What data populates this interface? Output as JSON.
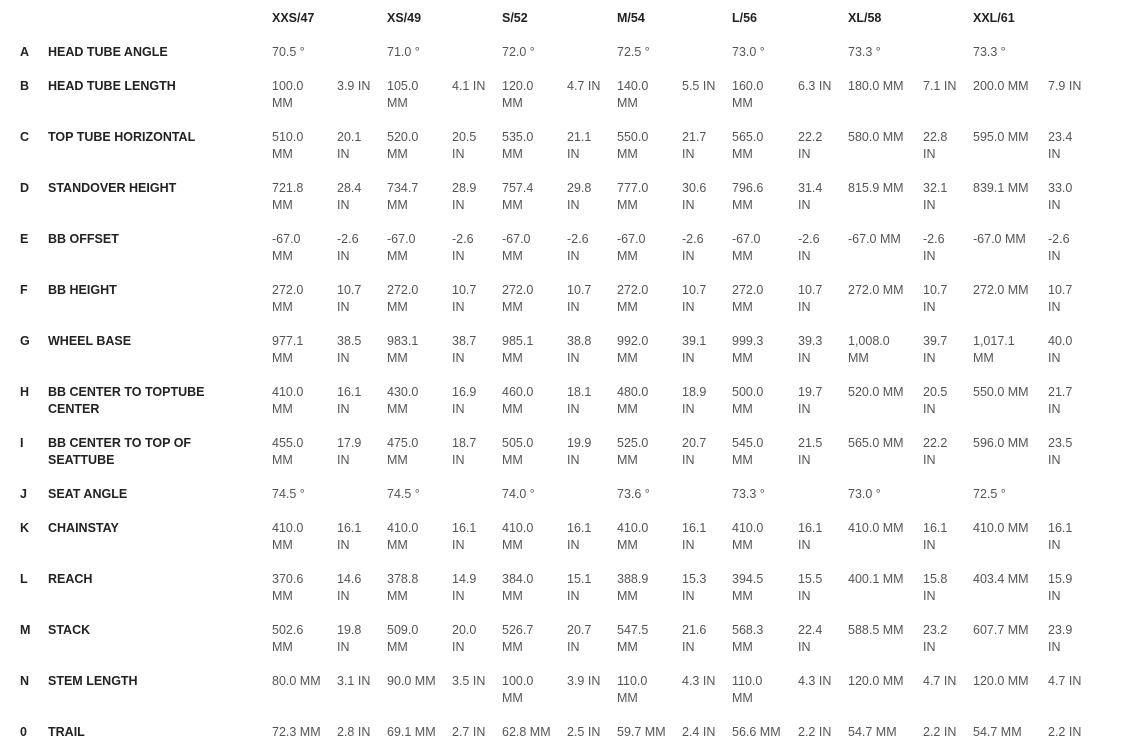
{
  "sizes": [
    "XXS/47",
    "XS/49",
    "S/52",
    "M/54",
    "L/56",
    "XL/58",
    "XXL/61"
  ],
  "rows": [
    {
      "letter": "A",
      "label": "HEAD TUBE ANGLE",
      "values": [
        {
          "v": "70.5 °"
        },
        {
          "v": "71.0 °"
        },
        {
          "v": "72.0 °"
        },
        {
          "v": "72.5 °"
        },
        {
          "v": "73.0 °"
        },
        {
          "v": "73.3 °"
        },
        {
          "v": "73.3 °"
        }
      ]
    },
    {
      "letter": "B",
      "label": "HEAD TUBE LENGTH",
      "values": [
        {
          "mm": "100.0 MM",
          "in": "3.9 IN"
        },
        {
          "mm": "105.0 MM",
          "in": "4.1 IN"
        },
        {
          "mm": "120.0 MM",
          "in": "4.7 IN"
        },
        {
          "mm": "140.0 MM",
          "in": "5.5 IN"
        },
        {
          "mm": "160.0 MM",
          "in": "6.3 IN"
        },
        {
          "mm": "180.0 MM",
          "in": "7.1 IN"
        },
        {
          "mm": "200.0 MM",
          "in": "7.9 IN"
        }
      ]
    },
    {
      "letter": "C",
      "label": "TOP TUBE HORIZONTAL",
      "values": [
        {
          "mm": "510.0 MM",
          "in": "20.1 IN"
        },
        {
          "mm": "520.0 MM",
          "in": "20.5 IN"
        },
        {
          "mm": "535.0 MM",
          "in": "21.1 IN"
        },
        {
          "mm": "550.0 MM",
          "in": "21.7 IN"
        },
        {
          "mm": "565.0 MM",
          "in": "22.2 IN"
        },
        {
          "mm": "580.0 MM",
          "in": "22.8 IN"
        },
        {
          "mm": "595.0 MM",
          "in": "23.4 IN"
        }
      ]
    },
    {
      "letter": "D",
      "label": "STANDOVER HEIGHT",
      "values": [
        {
          "mm": "721.8 MM",
          "in": "28.4 IN"
        },
        {
          "mm": "734.7 MM",
          "in": "28.9 IN"
        },
        {
          "mm": "757.4 MM",
          "in": "29.8 IN"
        },
        {
          "mm": "777.0 MM",
          "in": "30.6 IN"
        },
        {
          "mm": "796.6 MM",
          "in": "31.4 IN"
        },
        {
          "mm": "815.9 MM",
          "in": "32.1 IN"
        },
        {
          "mm": "839.1 MM",
          "in": "33.0 IN"
        }
      ]
    },
    {
      "letter": "E",
      "label": "BB OFFSET",
      "values": [
        {
          "mm": "-67.0 MM",
          "in": "-2.6 IN"
        },
        {
          "mm": "-67.0 MM",
          "in": "-2.6 IN"
        },
        {
          "mm": "-67.0 MM",
          "in": "-2.6 IN"
        },
        {
          "mm": "-67.0 MM",
          "in": "-2.6 IN"
        },
        {
          "mm": "-67.0 MM",
          "in": "-2.6 IN"
        },
        {
          "mm": "-67.0 MM",
          "in": "-2.6 IN"
        },
        {
          "mm": "-67.0 MM",
          "in": "-2.6 IN"
        }
      ]
    },
    {
      "letter": "F",
      "label": "BB HEIGHT",
      "values": [
        {
          "mm": "272.0 MM",
          "in": "10.7 IN"
        },
        {
          "mm": "272.0 MM",
          "in": "10.7 IN"
        },
        {
          "mm": "272.0 MM",
          "in": "10.7 IN"
        },
        {
          "mm": "272.0 MM",
          "in": "10.7 IN"
        },
        {
          "mm": "272.0 MM",
          "in": "10.7 IN"
        },
        {
          "mm": "272.0 MM",
          "in": "10.7 IN"
        },
        {
          "mm": "272.0 MM",
          "in": "10.7 IN"
        }
      ]
    },
    {
      "letter": "G",
      "label": "WHEEL BASE",
      "values": [
        {
          "mm": "977.1 MM",
          "in": "38.5 IN"
        },
        {
          "mm": "983.1 MM",
          "in": "38.7 IN"
        },
        {
          "mm": "985.1 MM",
          "in": "38.8 IN"
        },
        {
          "mm": "992.0 MM",
          "in": "39.1 IN"
        },
        {
          "mm": "999.3 MM",
          "in": "39.3 IN"
        },
        {
          "mm": "1,008.0 MM",
          "in": "39.7 IN"
        },
        {
          "mm": "1,017.1 MM",
          "in": "40.0 IN"
        }
      ]
    },
    {
      "letter": "H",
      "label": "BB CENTER TO TOPTUBE CENTER",
      "values": [
        {
          "mm": "410.0 MM",
          "in": "16.1 IN"
        },
        {
          "mm": "430.0 MM",
          "in": "16.9 IN"
        },
        {
          "mm": "460.0 MM",
          "in": "18.1 IN"
        },
        {
          "mm": "480.0 MM",
          "in": "18.9 IN"
        },
        {
          "mm": "500.0 MM",
          "in": "19.7 IN"
        },
        {
          "mm": "520.0 MM",
          "in": "20.5 IN"
        },
        {
          "mm": "550.0 MM",
          "in": "21.7 IN"
        }
      ]
    },
    {
      "letter": "I",
      "label": "BB CENTER TO TOP OF SEATTUBE",
      "values": [
        {
          "mm": "455.0 MM",
          "in": "17.9 IN"
        },
        {
          "mm": "475.0 MM",
          "in": "18.7 IN"
        },
        {
          "mm": "505.0 MM",
          "in": "19.9 IN"
        },
        {
          "mm": "525.0 MM",
          "in": "20.7 IN"
        },
        {
          "mm": "545.0 MM",
          "in": "21.5 IN"
        },
        {
          "mm": "565.0 MM",
          "in": "22.2 IN"
        },
        {
          "mm": "596.0 MM",
          "in": "23.5 IN"
        }
      ]
    },
    {
      "letter": "J",
      "label": "SEAT ANGLE",
      "values": [
        {
          "v": "74.5 °"
        },
        {
          "v": "74.5 °"
        },
        {
          "v": "74.0 °"
        },
        {
          "v": "73.6 °"
        },
        {
          "v": "73.3 °"
        },
        {
          "v": "73.0 °"
        },
        {
          "v": "72.5 °"
        }
      ]
    },
    {
      "letter": "K",
      "label": "CHAINSTAY",
      "values": [
        {
          "mm": "410.0 MM",
          "in": "16.1 IN"
        },
        {
          "mm": "410.0 MM",
          "in": "16.1 IN"
        },
        {
          "mm": "410.0 MM",
          "in": "16.1 IN"
        },
        {
          "mm": "410.0 MM",
          "in": "16.1 IN"
        },
        {
          "mm": "410.0 MM",
          "in": "16.1 IN"
        },
        {
          "mm": "410.0 MM",
          "in": "16.1 IN"
        },
        {
          "mm": "410.0 MM",
          "in": "16.1 IN"
        }
      ]
    },
    {
      "letter": "L",
      "label": "REACH",
      "values": [
        {
          "mm": "370.6 MM",
          "in": "14.6 IN"
        },
        {
          "mm": "378.8 MM",
          "in": "14.9 IN"
        },
        {
          "mm": "384.0 MM",
          "in": "15.1 IN"
        },
        {
          "mm": "388.9 MM",
          "in": "15.3 IN"
        },
        {
          "mm": "394.5 MM",
          "in": "15.5 IN"
        },
        {
          "mm": "400.1 MM",
          "in": "15.8 IN"
        },
        {
          "mm": "403.4 MM",
          "in": "15.9 IN"
        }
      ]
    },
    {
      "letter": "M",
      "label": "STACK",
      "values": [
        {
          "mm": "502.6 MM",
          "in": "19.8 IN"
        },
        {
          "mm": "509.0 MM",
          "in": "20.0 IN"
        },
        {
          "mm": "526.7 MM",
          "in": "20.7 IN"
        },
        {
          "mm": "547.5 MM",
          "in": "21.6 IN"
        },
        {
          "mm": "568.3 MM",
          "in": "22.4 IN"
        },
        {
          "mm": "588.5 MM",
          "in": "23.2 IN"
        },
        {
          "mm": "607.7 MM",
          "in": "23.9 IN"
        }
      ]
    },
    {
      "letter": "N",
      "label": "STEM LENGTH",
      "values": [
        {
          "mm": "80.0 MM",
          "in": "3.1 IN"
        },
        {
          "mm": "90.0 MM",
          "in": "3.5 IN"
        },
        {
          "mm": "100.0 MM",
          "in": "3.9 IN"
        },
        {
          "mm": "110.0 MM",
          "in": "4.3 IN"
        },
        {
          "mm": "110.0 MM",
          "in": "4.3 IN"
        },
        {
          "mm": "120.0 MM",
          "in": "4.7 IN"
        },
        {
          "mm": "120.0 MM",
          "in": "4.7 IN"
        }
      ]
    },
    {
      "letter": "0",
      "label": "TRAIL",
      "values": [
        {
          "mm": "72.3 MM",
          "in": "2.8 IN"
        },
        {
          "mm": "69.1 MM",
          "in": "2.7 IN"
        },
        {
          "mm": "62.8 MM",
          "in": "2.5 IN"
        },
        {
          "mm": "59.7 MM",
          "in": "2.4 IN"
        },
        {
          "mm": "56.6 MM",
          "in": "2.2 IN"
        },
        {
          "mm": "54.7 MM",
          "in": "2.2 IN"
        },
        {
          "mm": "54.7 MM",
          "in": "2.2 IN"
        }
      ]
    }
  ]
}
